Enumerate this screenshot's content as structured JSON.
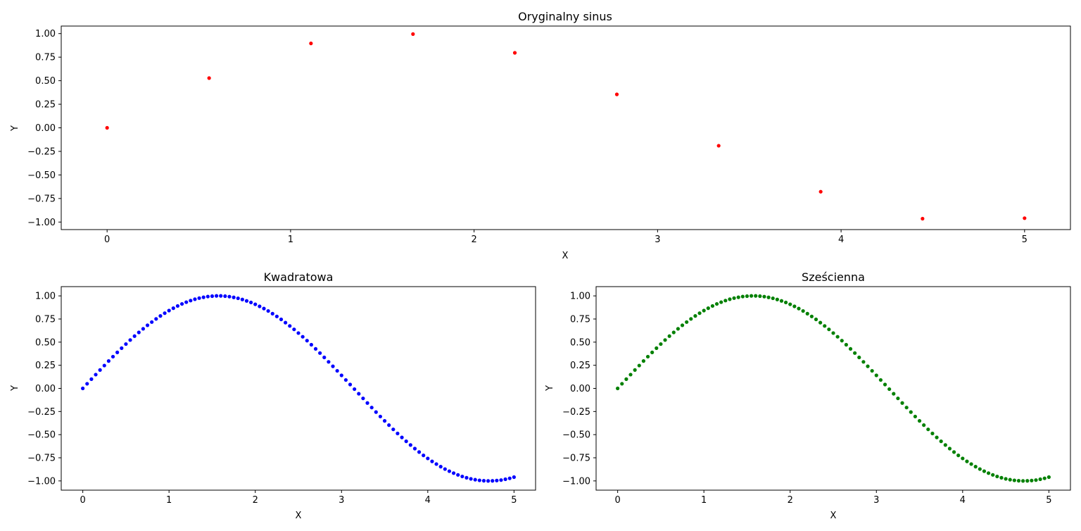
{
  "chart_data": [
    {
      "type": "scatter",
      "title": "Oryginalny sinus",
      "xlabel": "X",
      "ylabel": "Y",
      "xlim": [
        -0.25,
        5.25
      ],
      "ylim": [
        -1.08,
        1.08
      ],
      "xticks": [
        0,
        1,
        2,
        3,
        4,
        5
      ],
      "yticks": [
        1.0,
        0.75,
        0.5,
        0.25,
        0.0,
        -0.25,
        -0.5,
        -0.75,
        -1.0
      ],
      "ytick_labels": [
        "1.00",
        "0.75",
        "0.50",
        "0.25",
        "0.00",
        "−0.25",
        "−0.50",
        "−0.75",
        "−1.00"
      ],
      "grid": false,
      "color": "#ff0000",
      "x": [
        0,
        0.556,
        1.111,
        1.667,
        2.222,
        2.778,
        3.333,
        3.889,
        4.444,
        5.0
      ],
      "y": [
        0.0,
        0.528,
        0.896,
        0.995,
        0.796,
        0.355,
        -0.19,
        -0.678,
        -0.964,
        -0.959
      ]
    },
    {
      "type": "scatter",
      "title": "Kwadratowa",
      "xlabel": "X",
      "ylabel": "Y",
      "xlim": [
        -0.25,
        5.25
      ],
      "ylim": [
        -1.1,
        1.1
      ],
      "xticks": [
        0,
        1,
        2,
        3,
        4,
        5
      ],
      "yticks": [
        1.0,
        0.75,
        0.5,
        0.25,
        0.0,
        -0.25,
        -0.5,
        -0.75,
        -1.0
      ],
      "ytick_labels": [
        "1.00",
        "0.75",
        "0.50",
        "0.25",
        "0.00",
        "−0.25",
        "−0.50",
        "−0.75",
        "−1.00"
      ],
      "grid": false,
      "color": "#0000ff",
      "x": [
        0.0,
        0.05,
        0.1,
        0.15,
        0.2,
        0.25,
        0.3,
        0.35,
        0.4,
        0.45,
        0.5,
        0.55,
        0.6,
        0.65,
        0.7,
        0.75,
        0.8,
        0.85,
        0.9,
        0.95,
        1.0,
        1.05,
        1.1,
        1.15,
        1.2,
        1.25,
        1.3,
        1.35,
        1.4,
        1.45,
        1.5,
        1.55,
        1.6,
        1.65,
        1.7,
        1.75,
        1.8,
        1.85,
        1.9,
        1.95,
        2.0,
        2.05,
        2.1,
        2.15,
        2.2,
        2.25,
        2.3,
        2.35,
        2.4,
        2.45,
        2.5,
        2.55,
        2.6,
        2.65,
        2.7,
        2.75,
        2.8,
        2.85,
        2.9,
        2.95,
        3.0,
        3.05,
        3.1,
        3.15,
        3.2,
        3.25,
        3.3,
        3.35,
        3.4,
        3.45,
        3.5,
        3.55,
        3.6,
        3.65,
        3.7,
        3.75,
        3.8,
        3.85,
        3.9,
        3.95,
        4.0,
        4.05,
        4.1,
        4.15,
        4.2,
        4.25,
        4.3,
        4.35,
        4.4,
        4.45,
        4.5,
        4.55,
        4.6,
        4.65,
        4.7,
        4.75,
        4.8,
        4.85,
        4.9,
        4.95,
        5.0
      ],
      "y": [
        0.0,
        0.05,
        0.1,
        0.149,
        0.199,
        0.247,
        0.296,
        0.343,
        0.389,
        0.435,
        0.479,
        0.523,
        0.565,
        0.605,
        0.644,
        0.682,
        0.717,
        0.751,
        0.783,
        0.813,
        0.841,
        0.867,
        0.891,
        0.913,
        0.932,
        0.949,
        0.964,
        0.976,
        0.985,
        0.993,
        0.997,
        1.0,
        1.0,
        0.997,
        0.992,
        0.984,
        0.974,
        0.961,
        0.946,
        0.929,
        0.909,
        0.887,
        0.863,
        0.837,
        0.808,
        0.778,
        0.746,
        0.711,
        0.675,
        0.638,
        0.598,
        0.558,
        0.516,
        0.472,
        0.427,
        0.382,
        0.335,
        0.287,
        0.239,
        0.19,
        0.141,
        0.091,
        0.042,
        -0.008,
        -0.058,
        -0.108,
        -0.158,
        -0.207,
        -0.256,
        -0.304,
        -0.351,
        -0.397,
        -0.443,
        -0.487,
        -0.53,
        -0.572,
        -0.612,
        -0.651,
        -0.688,
        -0.724,
        -0.757,
        -0.789,
        -0.818,
        -0.846,
        -0.872,
        -0.895,
        -0.916,
        -0.935,
        -0.952,
        -0.966,
        -0.978,
        -0.987,
        -0.994,
        -0.998,
        -1.0,
        -0.999,
        -0.996,
        -0.991,
        -0.982,
        -0.972,
        -0.959
      ]
    },
    {
      "type": "scatter",
      "title": "Sześcienna",
      "xlabel": "X",
      "ylabel": "Y",
      "xlim": [
        -0.25,
        5.25
      ],
      "ylim": [
        -1.1,
        1.1
      ],
      "xticks": [
        0,
        1,
        2,
        3,
        4,
        5
      ],
      "yticks": [
        1.0,
        0.75,
        0.5,
        0.25,
        0.0,
        -0.25,
        -0.5,
        -0.75,
        -1.0
      ],
      "ytick_labels": [
        "1.00",
        "0.75",
        "0.50",
        "0.25",
        "0.00",
        "−0.25",
        "−0.50",
        "−0.75",
        "−1.00"
      ],
      "grid": false,
      "color": "#008000",
      "x": [
        0.0,
        0.05,
        0.1,
        0.15,
        0.2,
        0.25,
        0.3,
        0.35,
        0.4,
        0.45,
        0.5,
        0.55,
        0.6,
        0.65,
        0.7,
        0.75,
        0.8,
        0.85,
        0.9,
        0.95,
        1.0,
        1.05,
        1.1,
        1.15,
        1.2,
        1.25,
        1.3,
        1.35,
        1.4,
        1.45,
        1.5,
        1.55,
        1.6,
        1.65,
        1.7,
        1.75,
        1.8,
        1.85,
        1.9,
        1.95,
        2.0,
        2.05,
        2.1,
        2.15,
        2.2,
        2.25,
        2.3,
        2.35,
        2.4,
        2.45,
        2.5,
        2.55,
        2.6,
        2.65,
        2.7,
        2.75,
        2.8,
        2.85,
        2.9,
        2.95,
        3.0,
        3.05,
        3.1,
        3.15,
        3.2,
        3.25,
        3.3,
        3.35,
        3.4,
        3.45,
        3.5,
        3.55,
        3.6,
        3.65,
        3.7,
        3.75,
        3.8,
        3.85,
        3.9,
        3.95,
        4.0,
        4.05,
        4.1,
        4.15,
        4.2,
        4.25,
        4.3,
        4.35,
        4.4,
        4.45,
        4.5,
        4.55,
        4.6,
        4.65,
        4.7,
        4.75,
        4.8,
        4.85,
        4.9,
        4.95,
        5.0
      ],
      "y": [
        0.0,
        0.05,
        0.1,
        0.149,
        0.199,
        0.247,
        0.296,
        0.343,
        0.389,
        0.435,
        0.479,
        0.523,
        0.565,
        0.605,
        0.644,
        0.682,
        0.717,
        0.751,
        0.783,
        0.813,
        0.841,
        0.867,
        0.891,
        0.913,
        0.932,
        0.949,
        0.964,
        0.976,
        0.985,
        0.993,
        0.997,
        1.0,
        1.0,
        0.997,
        0.992,
        0.984,
        0.974,
        0.961,
        0.946,
        0.929,
        0.909,
        0.887,
        0.863,
        0.837,
        0.808,
        0.778,
        0.746,
        0.711,
        0.675,
        0.638,
        0.598,
        0.558,
        0.516,
        0.472,
        0.427,
        0.382,
        0.335,
        0.287,
        0.239,
        0.19,
        0.141,
        0.091,
        0.042,
        -0.008,
        -0.058,
        -0.108,
        -0.158,
        -0.207,
        -0.256,
        -0.304,
        -0.351,
        -0.397,
        -0.443,
        -0.487,
        -0.53,
        -0.572,
        -0.612,
        -0.651,
        -0.688,
        -0.724,
        -0.757,
        -0.789,
        -0.818,
        -0.846,
        -0.872,
        -0.895,
        -0.916,
        -0.935,
        -0.952,
        -0.966,
        -0.978,
        -0.987,
        -0.994,
        -0.998,
        -1.0,
        -0.999,
        -0.996,
        -0.991,
        -0.982,
        -0.972,
        -0.959
      ]
    }
  ]
}
